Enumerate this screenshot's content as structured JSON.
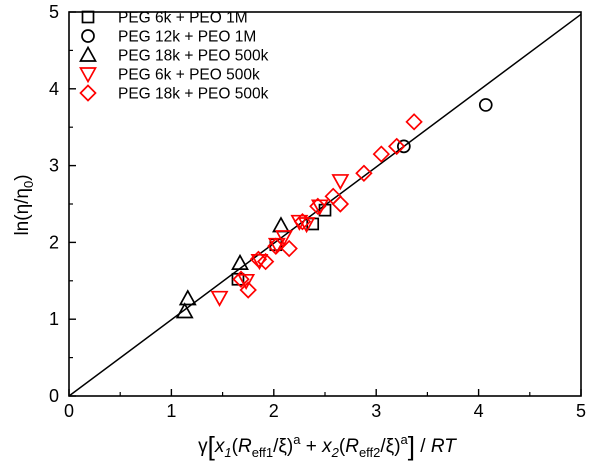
{
  "chart_data": {
    "type": "scatter",
    "xlabel": {
      "gamma": "γ",
      "x1": "x",
      "x1_sub": "1",
      "r1": "R",
      "r1_sub": "eff1",
      "xi1": "/ξ)",
      "a1": "a",
      "plus": " + ",
      "x2": "x",
      "x2_sub": "2",
      "r2": "R",
      "r2_sub": "eff2",
      "xi2": "/ξ)",
      "a2": "a",
      "rt_slash": " / ",
      "rt": "RT"
    },
    "ylabel": {
      "prefix": "ln(η/η",
      "sub": "0",
      "suffix": ")"
    },
    "xlim": [
      0,
      5
    ],
    "ylim": [
      0,
      5
    ],
    "x_ticks": [
      "0",
      "1",
      "2",
      "3",
      "4",
      "5"
    ],
    "y_ticks": [
      "0",
      "1",
      "2",
      "3",
      "4",
      "5"
    ],
    "legend_position": "top-left",
    "fit_line": {
      "x": [
        0,
        5
      ],
      "y": [
        0,
        4.97
      ],
      "color": "#000000"
    },
    "series": [
      {
        "name": "PEG 6k + PEO 1M",
        "marker": "square",
        "color": "#000000",
        "points": [
          [
            1.65,
            1.52
          ],
          [
            2.02,
            1.97
          ],
          [
            2.38,
            2.24
          ],
          [
            2.5,
            2.42
          ]
        ]
      },
      {
        "name": "PEG 12k + PEO 1M",
        "marker": "circle",
        "color": "#000000",
        "points": [
          [
            3.27,
            3.25
          ],
          [
            4.07,
            3.79
          ]
        ]
      },
      {
        "name": "PEG 18k  + PEO 500k",
        "marker": "triangle-up",
        "color": "#000000",
        "points": [
          [
            1.13,
            1.1
          ],
          [
            1.16,
            1.27
          ],
          [
            1.67,
            1.73
          ],
          [
            2.07,
            2.22
          ]
        ]
      },
      {
        "name": "PEG 6k  + PEO 500k",
        "marker": "triangle-down",
        "color": "#ff0000",
        "points": [
          [
            1.47,
            1.28
          ],
          [
            1.73,
            1.5
          ],
          [
            1.86,
            1.76
          ],
          [
            2.03,
            1.97
          ],
          [
            2.1,
            2.07
          ],
          [
            2.25,
            2.27
          ],
          [
            2.32,
            2.24
          ],
          [
            2.45,
            2.47
          ],
          [
            2.65,
            2.8
          ]
        ]
      },
      {
        "name": "PEG 18k  + PEO 500k",
        "marker": "diamond",
        "color": "#ff0000",
        "points": [
          [
            1.68,
            1.52
          ],
          [
            1.75,
            1.38
          ],
          [
            1.85,
            1.78
          ],
          [
            1.92,
            1.75
          ],
          [
            2.02,
            1.95
          ],
          [
            2.15,
            1.92
          ],
          [
            2.28,
            2.27
          ],
          [
            2.43,
            2.47
          ],
          [
            2.58,
            2.6
          ],
          [
            2.65,
            2.5
          ],
          [
            2.88,
            2.9
          ],
          [
            3.05,
            3.15
          ],
          [
            3.2,
            3.25
          ],
          [
            3.37,
            3.57
          ]
        ]
      }
    ]
  }
}
